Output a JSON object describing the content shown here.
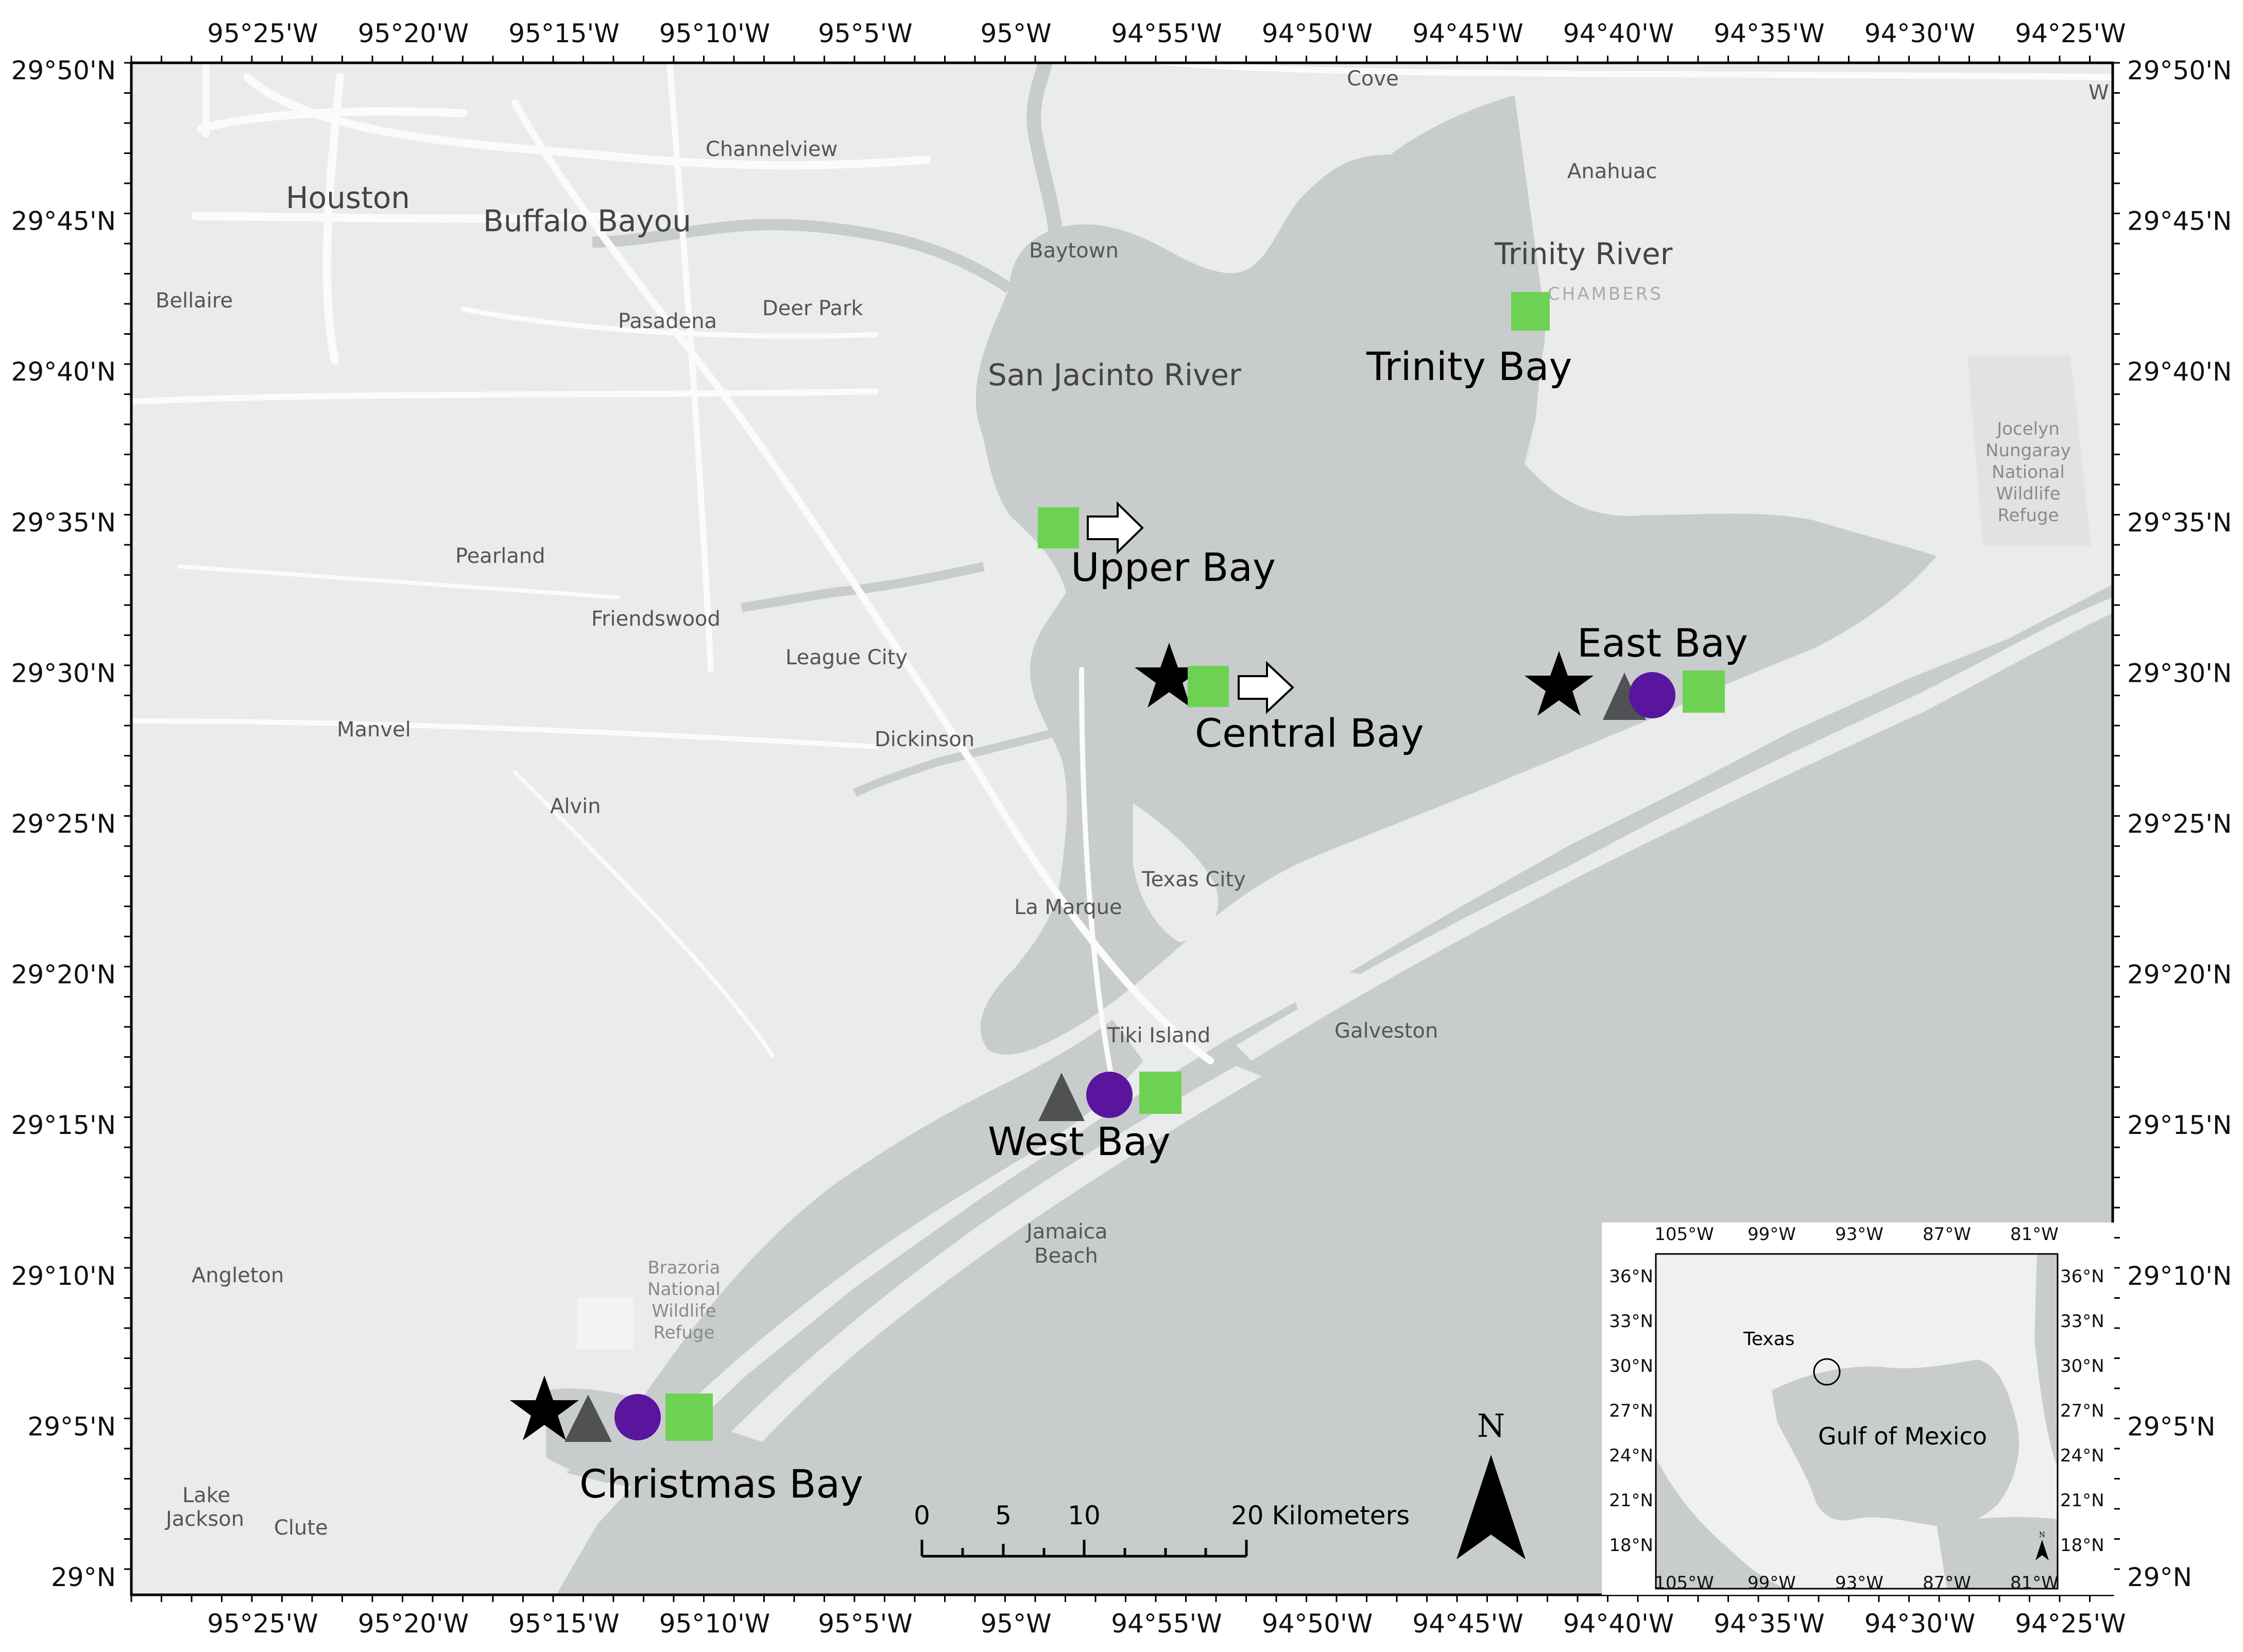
{
  "map": {
    "lon_labels": [
      "95°25'W",
      "95°20'W",
      "95°15'W",
      "95°10'W",
      "95°5'W",
      "95°W",
      "94°55'W",
      "94°50'W",
      "94°45'W",
      "94°40'W",
      "94°35'W",
      "94°30'W",
      "94°25'W"
    ],
    "lat_labels": [
      "29°50'N",
      "29°45'N",
      "29°40'N",
      "29°35'N",
      "29°30'N",
      "29°25'N",
      "29°20'N",
      "29°15'N",
      "29°10'N",
      "29°5'N",
      "29°N"
    ],
    "places": {
      "houston": "Houston",
      "buffalo_bayou": "Buffalo Bayou",
      "channelview": "Channelview",
      "cove": "Cove",
      "w_edge": "W",
      "anahuac": "Anahuac",
      "baytown": "Baytown",
      "trinity_river": "Trinity River",
      "chambers": "CHAMBERS",
      "bellaire": "Bellaire",
      "pasadena": "Pasadena",
      "deer_park": "Deer Park",
      "san_jacinto": "San Jacinto River",
      "pearland": "Pearland",
      "friendswood": "Friendswood",
      "league_city": "League City",
      "manvel": "Manvel",
      "dickinson": "Dickinson",
      "alvin": "Alvin",
      "texas_city": "Texas City",
      "la_marque": "La Marque",
      "tiki_island": "Tiki Island",
      "galveston": "Galveston",
      "jamaica_1": "Jamaica",
      "jamaica_2": "Beach",
      "angleton": "Angleton",
      "lake_1": "Lake",
      "lake_2": "Jackson",
      "clute": "Clute"
    },
    "parks": {
      "jocelyn": [
        "Jocelyn",
        "Nungaray",
        "National",
        "Wildlife",
        "Refuge"
      ],
      "brazoria": [
        "Brazoria",
        "National",
        "Wildlife",
        "Refuge"
      ]
    },
    "bays": {
      "trinity": "Trinity Bay",
      "upper": "Upper Bay",
      "central": "Central Bay",
      "east": "East Bay",
      "west": "West Bay",
      "christmas": "Christmas Bay"
    },
    "north_arrow": "N",
    "scale_bar": {
      "label_0": "0",
      "label_5": "5",
      "label_10": "10",
      "label_20": "20 Kilometers"
    },
    "inset": {
      "lon_labels": [
        "105°W",
        "99°W",
        "93°W",
        "87°W",
        "81°W"
      ],
      "lat_labels": [
        "36°N",
        "33°N",
        "30°N",
        "27°N",
        "24°N",
        "21°N",
        "18°N"
      ],
      "texas": "Texas",
      "gulf": "Gulf of Mexico",
      "north": "N"
    },
    "colors": {
      "water": "#c9cccd",
      "land": "#eaebeb",
      "road": "#fbfbfb",
      "green_square": "#6dd253",
      "purple_circle": "#5a159f",
      "gray_triangle": "#4f5153",
      "black_star": "#000000",
      "arrow_fill": "#ffffff"
    },
    "symbols": [
      "black-star",
      "gray-triangle",
      "purple-circle",
      "green-square",
      "white-arrow"
    ]
  }
}
